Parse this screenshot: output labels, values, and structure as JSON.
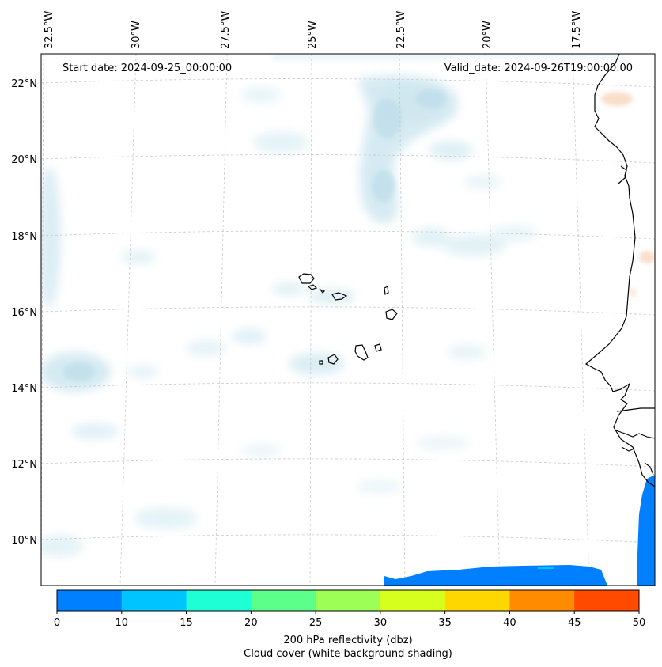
{
  "map": {
    "start_date_text": "Start date: 2024-09-25_00:00:00",
    "valid_date_text": "Valid_date: 2024-09-26T19:00:00.00",
    "lon_labels": [
      "32.5°W",
      "30°W",
      "27.5°W",
      "25°W",
      "22.5°W",
      "20°W",
      "17.5°W"
    ],
    "lat_labels": [
      "22°N",
      "20°N",
      "18°N",
      "16°N",
      "14°N",
      "12°N",
      "10°N"
    ],
    "cloud_color": "#d6ecf3",
    "coast_color": "#000000"
  },
  "colorbar": {
    "colors": [
      "#0080ff",
      "#00c4ff",
      "#1fffd6",
      "#5bff8a",
      "#9dff55",
      "#d7ff1e",
      "#ffd700",
      "#ff8c00",
      "#ff4a00"
    ],
    "ticks": [
      "0",
      "10",
      "15",
      "20",
      "25",
      "30",
      "35",
      "40",
      "45",
      "50"
    ],
    "label": "200 hPa reflectivity (dbz)",
    "sublabel": "Cloud cover (white background shading)"
  }
}
